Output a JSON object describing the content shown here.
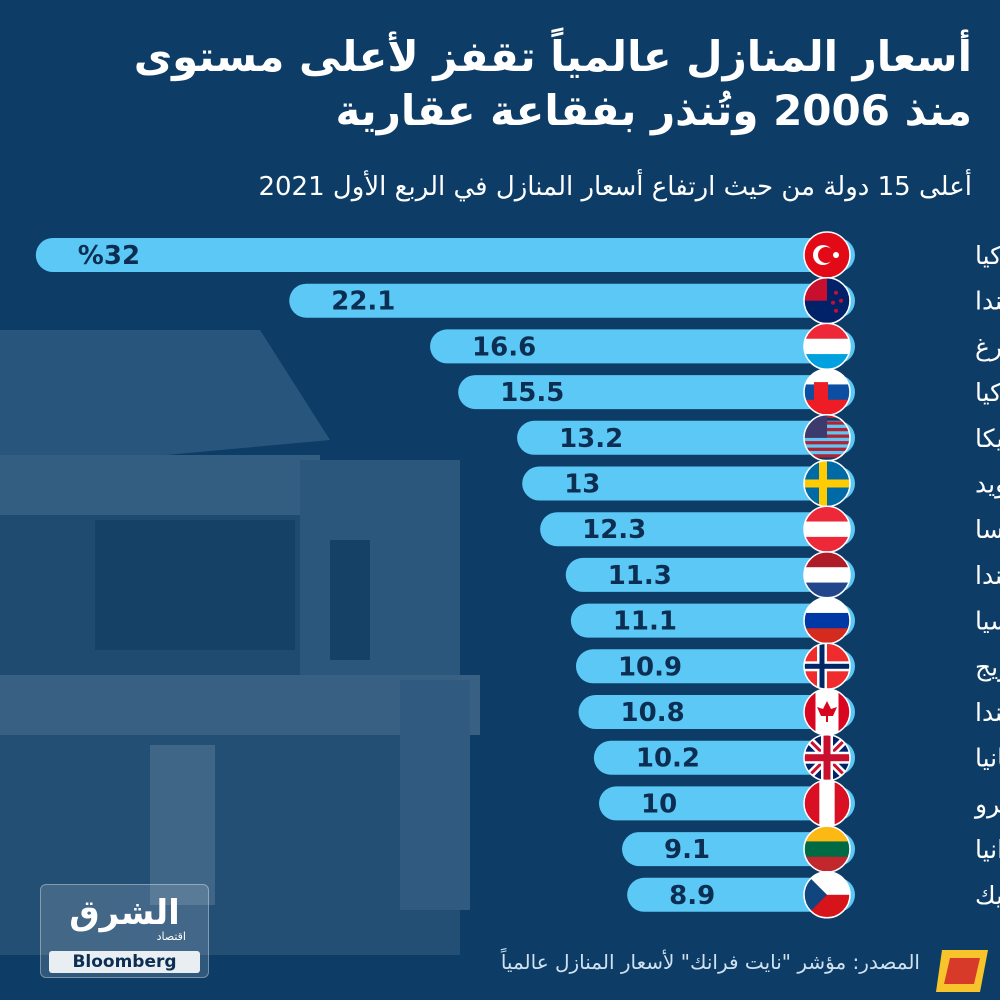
{
  "header": {
    "title": "أسعار المنازل عالمياً تقفز لأعلى مستوى منذ 2006 وتُنذر بفقاعة عقارية",
    "subtitle": "أعلى 15 دولة من حيث ارتفاع أسعار المنازل في الربع الأول 2021"
  },
  "chart_data": {
    "type": "bar",
    "orientation": "horizontal",
    "categories": [
      "تركيا",
      "نيوزيلندا",
      "لوكسمبورغ",
      "سلوفاكيا",
      "أمريكا",
      "السويد",
      "النمسا",
      "هولندا",
      "روسيا",
      "النرويج",
      "كندا",
      "بريطانيا",
      "بيرو",
      "ليتوانيا",
      "التشيك"
    ],
    "values": [
      32,
      22.1,
      16.6,
      15.5,
      13.2,
      13,
      12.3,
      11.3,
      11.1,
      10.9,
      10.8,
      10.2,
      10,
      9.1,
      8.9
    ],
    "value_labels": [
      "%32",
      "22.1",
      "16.6",
      "15.5",
      "13.2",
      "13",
      "12.3",
      "11.3",
      "11.1",
      "10.9",
      "10.8",
      "10.2",
      "10",
      "9.1",
      "8.9"
    ],
    "flags": [
      "turkey-flag",
      "new-zealand-flag",
      "luxembourg-flag",
      "slovakia-flag",
      "usa-flag",
      "sweden-flag",
      "austria-flag",
      "netherlands-flag",
      "russia-flag",
      "norway-flag",
      "canada-flag",
      "uk-flag",
      "peru-flag",
      "lithuania-flag",
      "czech-flag"
    ],
    "bar_color": "#5cc8f5",
    "value_color": "#0b2e52"
  },
  "footer": {
    "source": "المصدر: مؤشر \"نايت فرانك\" لأسعار المنازل عالمياً",
    "logo_arabic": "الشرق",
    "logo_sub": "اقتصاد",
    "logo_bloomberg": "Bloomberg"
  },
  "colors": {
    "background": "#0d3d66",
    "text": "#ffffff"
  }
}
